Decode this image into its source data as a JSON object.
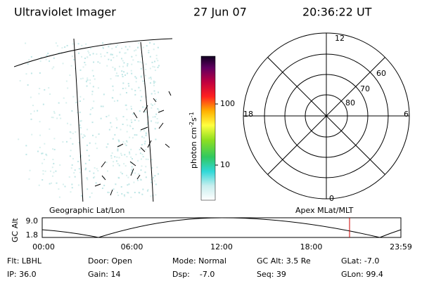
{
  "header": {
    "title": "Ultraviolet Imager",
    "date": "27 Jun 07",
    "time": "20:36:22 UT"
  },
  "colorbar": {
    "unit": "photon cm",
    "exp1": "-2",
    "unit2": "s",
    "exp2": "-1",
    "ticks": [
      "100",
      "10"
    ]
  },
  "polar": {
    "labels": {
      "top": "12",
      "bottom": "0",
      "left": "18",
      "right": "6"
    },
    "rings": [
      "60",
      "70",
      "80"
    ]
  },
  "timeline": {
    "left_label": "Geographic Lat/Lon",
    "right_label": "Apex MLat/MLT",
    "axis_label": "GC Alt",
    "ymax": "9.0",
    "ymin": "1.8",
    "times": [
      "00:00",
      "06:00",
      "12:00",
      "18:00",
      "23:59"
    ]
  },
  "info": {
    "rows": [
      [
        "Flt: LBHL",
        "Door: Open",
        "Mode: Normal",
        "GC Alt: 3.5 Re",
        "GLat: -7.0"
      ],
      [
        "IP: 36.0",
        "Gain: 14",
        "Dsp:    -7.0",
        "Seq: 39",
        "GLon: 99.4"
      ]
    ]
  }
}
